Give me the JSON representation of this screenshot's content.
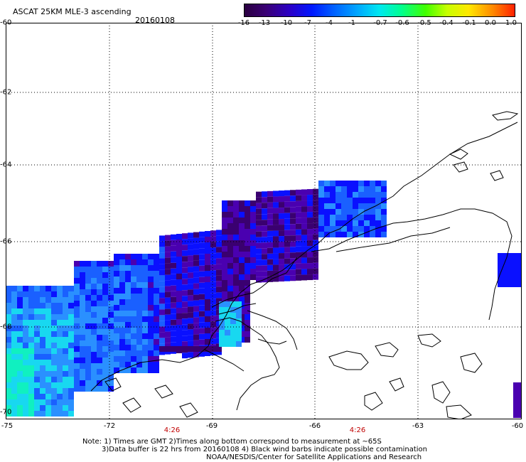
{
  "header": {
    "product": "ASCAT 25KM MLE-3 ascending",
    "date": "20160108"
  },
  "colorbar": {
    "labels": [
      "-16",
      "-13",
      "-10",
      "-7",
      "-4",
      "-1",
      "-0.7",
      "-0.6",
      "-0.5",
      "-0.4",
      "-0.1",
      "0.0",
      "1.0"
    ],
    "colors": [
      "#2a0040",
      "#3a0075",
      "#2a00c8",
      "#0018ff",
      "#0060ff",
      "#00a8ff",
      "#00e8f0",
      "#00ff90",
      "#40ff00",
      "#c8ff00",
      "#ffe800",
      "#ff8800",
      "#ff2000"
    ]
  },
  "axes": {
    "lat_labels": [
      "-60",
      "-62",
      "-64",
      "-66",
      "-68",
      "-70"
    ],
    "lon_labels": [
      "-75",
      "-72",
      "-69",
      "-66",
      "-63",
      "-60"
    ]
  },
  "times": [
    "4:26",
    "4:26"
  ],
  "notes": {
    "line1": "Note: 1) Times are GMT 2)Times along bottom correspond to measurement at ~65S",
    "line2": "3)Data buffer is 22 hrs from 20160108 4) Black wind barbs indicate possible contamination",
    "line3": "NOAA/NESDIS/Center for Satellite Applications and Research"
  },
  "style": {
    "swath_colors": {
      "dark_purple": "#3a0070",
      "purple": "#4a00b0",
      "blue": "#0a10ff",
      "medium_blue": "#1a60ff",
      "light_blue": "#2a90ff",
      "cyan": "#18d8f0",
      "aqua": "#10f0c0"
    }
  }
}
